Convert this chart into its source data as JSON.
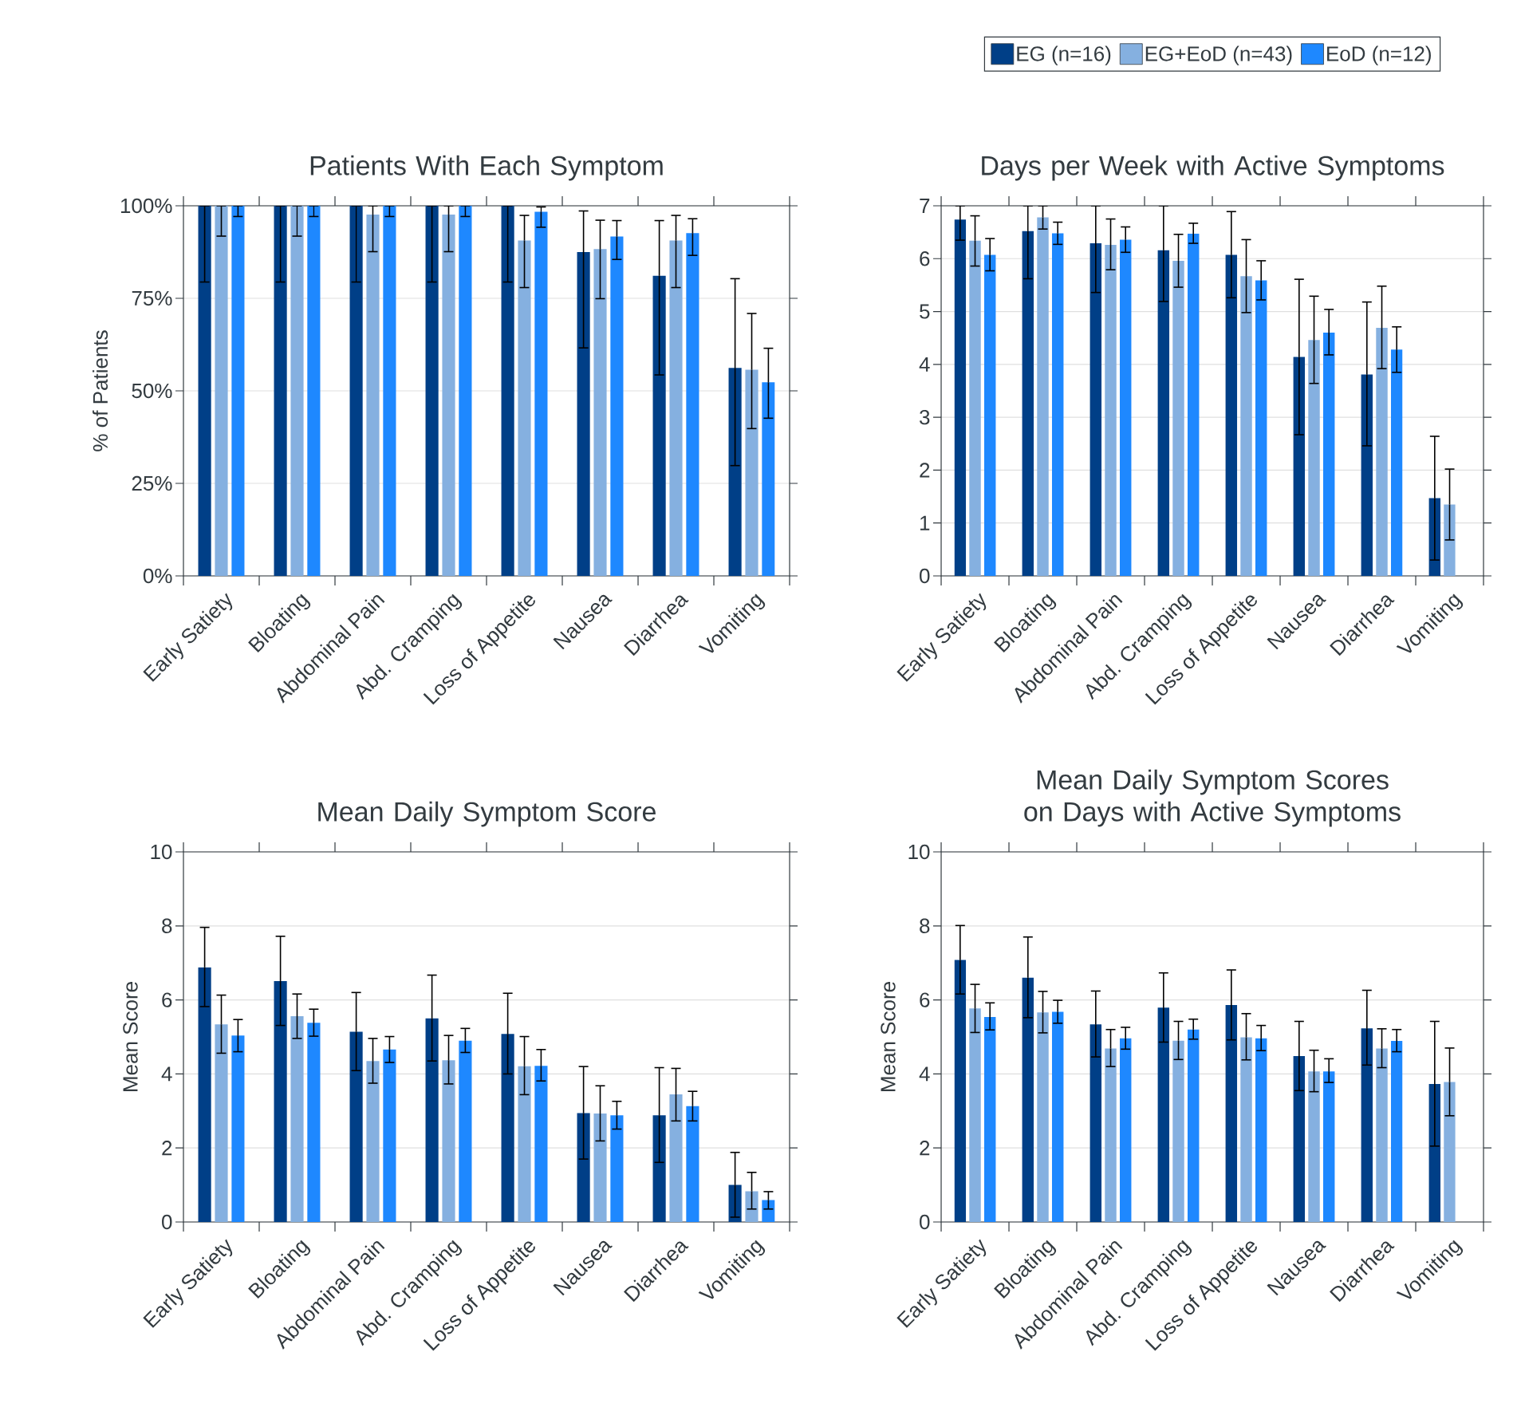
{
  "chart_data": [
    {
      "type": "bar",
      "title": "Patients With Each Symptom",
      "ylabel": "% of Patients",
      "categories": [
        "Early Satiety",
        "Bloating",
        "Abdominal Pain",
        "Abd. Cramping",
        "Loss of Appetite",
        "Nausea",
        "Diarrhea",
        "Vomiting"
      ],
      "ylim": [
        0,
        100
      ],
      "yticks": [
        {
          "value": 0,
          "label": "0%"
        },
        {
          "value": 25,
          "label": "25%"
        },
        {
          "value": 50,
          "label": "50%"
        },
        {
          "value": 75,
          "label": "75%"
        },
        {
          "value": 100,
          "label": "100%"
        }
      ],
      "grid": "y",
      "series": [
        {
          "color": "#003f87",
          "values": [
            100,
            100,
            100,
            100,
            100,
            87.5,
            81.1,
            56.2
          ],
          "errors": [
            [
              79.4,
              100
            ],
            [
              79.4,
              100
            ],
            [
              79.4,
              100
            ],
            [
              79.4,
              100
            ],
            [
              79.4,
              100
            ],
            [
              61.6,
              98.6
            ],
            [
              54.3,
              96.0
            ],
            [
              29.8,
              80.3
            ]
          ]
        },
        {
          "color": "#85b0e0",
          "values": [
            100,
            100,
            97.6,
            97.6,
            90.6,
            88.3,
            90.6,
            55.7
          ],
          "errors": [
            [
              91.8,
              100
            ],
            [
              91.8,
              100
            ],
            [
              87.6,
              100
            ],
            [
              87.6,
              100
            ],
            [
              77.9,
              97.4
            ],
            [
              74.9,
              96.1
            ],
            [
              77.9,
              97.4
            ],
            [
              39.8,
              70.9
            ]
          ]
        },
        {
          "color": "#1e88ff",
          "values": [
            100,
            100,
            100,
            100,
            98.4,
            91.7,
            92.6,
            52.3
          ],
          "errors": [
            [
              97.1,
              100
            ],
            [
              97.1,
              100
            ],
            [
              97.1,
              100
            ],
            [
              97.1,
              100
            ],
            [
              94.2,
              99.7
            ],
            [
              85.5,
              96.0
            ],
            [
              86.6,
              96.5
            ],
            [
              42.6,
              61.5
            ]
          ]
        }
      ]
    },
    {
      "type": "bar",
      "title": "Days per Week with Active Symptoms",
      "categories": [
        "Early Satiety",
        "Bloating",
        "Abdominal Pain",
        "Abd. Cramping",
        "Loss of Appetite",
        "Nausea",
        "Diarrhea",
        "Vomiting"
      ],
      "ylim": [
        0,
        7
      ],
      "yticks": [
        0,
        1,
        2,
        3,
        4,
        5,
        6,
        7
      ],
      "grid": "y",
      "legend": "top",
      "series": [
        {
          "name": "EG (n=16)",
          "color": "#003f87",
          "values": [
            6.74,
            6.52,
            6.29,
            6.16,
            6.07,
            4.14,
            3.81,
            1.47
          ],
          "errors": [
            [
              6.35,
              7
            ],
            [
              5.62,
              7
            ],
            [
              5.36,
              7
            ],
            [
              5.19,
              7
            ],
            [
              5.26,
              6.89
            ],
            [
              2.67,
              5.61
            ],
            [
              2.46,
              5.18
            ],
            [
              0.3,
              2.64
            ]
          ]
        },
        {
          "name": "EG+EoD (n=43)",
          "color": "#85b0e0",
          "values": [
            6.34,
            6.78,
            6.26,
            5.96,
            5.67,
            4.46,
            4.69,
            1.35
          ],
          "errors": [
            [
              5.86,
              6.81
            ],
            [
              6.56,
              7.0
            ],
            [
              5.79,
              6.75
            ],
            [
              5.46,
              6.46
            ],
            [
              4.98,
              6.36
            ],
            [
              3.64,
              5.29
            ],
            [
              3.92,
              5.48
            ],
            [
              0.68,
              2.02
            ]
          ]
        },
        {
          "name": "EoD (n=12)",
          "color": "#1e88ff",
          "values": [
            6.07,
            6.48,
            6.36,
            6.47,
            5.59,
            4.6,
            4.28,
            null
          ],
          "errors": [
            [
              5.77,
              6.38
            ],
            [
              6.27,
              6.69
            ],
            [
              6.12,
              6.6
            ],
            [
              6.29,
              6.67
            ],
            [
              5.22,
              5.96
            ],
            [
              4.18,
              5.04
            ],
            [
              3.85,
              4.71
            ],
            null
          ]
        }
      ]
    },
    {
      "type": "bar",
      "title": "Mean Daily Symptom Score",
      "ylabel": "Mean Score",
      "categories": [
        "Early Satiety",
        "Bloating",
        "Abdominal Pain",
        "Abd. Cramping",
        "Loss of Appetite",
        "Nausea",
        "Diarrhea",
        "Vomiting"
      ],
      "ylim": [
        0,
        10
      ],
      "yticks": [
        0,
        2,
        4,
        6,
        8,
        10
      ],
      "grid": "y",
      "series": [
        {
          "color": "#003f87",
          "values": [
            6.88,
            6.51,
            5.14,
            5.5,
            5.08,
            2.94,
            2.88,
            1.0
          ],
          "errors": [
            [
              5.82,
              7.96
            ],
            [
              5.31,
              7.72
            ],
            [
              4.09,
              6.2
            ],
            [
              4.35,
              6.67
            ],
            [
              4.0,
              6.18
            ],
            [
              1.7,
              4.2
            ],
            [
              1.61,
              4.17
            ],
            [
              0.13,
              1.88
            ]
          ]
        },
        {
          "color": "#85b0e0",
          "values": [
            5.34,
            5.56,
            4.35,
            4.37,
            4.21,
            2.93,
            3.45,
            0.83
          ],
          "errors": [
            [
              4.56,
              6.13
            ],
            [
              4.96,
              6.16
            ],
            [
              3.75,
              4.96
            ],
            [
              3.73,
              5.04
            ],
            [
              3.44,
              5.01
            ],
            [
              2.19,
              3.68
            ],
            [
              2.73,
              4.15
            ],
            [
              0.35,
              1.34
            ]
          ]
        },
        {
          "color": "#1e88ff",
          "values": [
            5.04,
            5.38,
            4.66,
            4.9,
            4.22,
            2.88,
            3.13,
            0.59
          ],
          "errors": [
            [
              4.6,
              5.47
            ],
            [
              5.02,
              5.75
            ],
            [
              4.31,
              5.01
            ],
            [
              4.58,
              5.23
            ],
            [
              3.81,
              4.66
            ],
            [
              2.51,
              3.26
            ],
            [
              2.73,
              3.53
            ],
            [
              0.35,
              0.82
            ]
          ]
        }
      ]
    },
    {
      "type": "bar",
      "title": "Mean Daily Symptom Scores on Days with Active Symptoms",
      "ylabel": "Mean Score",
      "categories": [
        "Early Satiety",
        "Bloating",
        "Abdominal Pain",
        "Abd. Cramping",
        "Loss of Appetite",
        "Nausea",
        "Diarrhea",
        "Vomiting"
      ],
      "ylim": [
        0,
        10
      ],
      "yticks": [
        0,
        2,
        4,
        6,
        8,
        10
      ],
      "grid": "y",
      "series": [
        {
          "color": "#003f87",
          "values": [
            7.08,
            6.6,
            5.34,
            5.79,
            5.86,
            4.48,
            5.23,
            3.73
          ],
          "errors": [
            [
              6.16,
              8.01
            ],
            [
              5.52,
              7.7
            ],
            [
              4.46,
              6.24
            ],
            [
              4.86,
              6.73
            ],
            [
              4.92,
              6.81
            ],
            [
              3.55,
              5.42
            ],
            [
              4.24,
              6.26
            ],
            [
              2.05,
              5.42
            ]
          ]
        },
        {
          "color": "#85b0e0",
          "values": [
            5.77,
            5.66,
            4.69,
            4.9,
            4.99,
            4.07,
            4.69,
            3.78
          ],
          "errors": [
            [
              5.12,
              6.42
            ],
            [
              5.11,
              6.23
            ],
            [
              4.2,
              5.2
            ],
            [
              4.39,
              5.42
            ],
            [
              4.38,
              5.63
            ],
            [
              3.52,
              4.64
            ],
            [
              4.17,
              5.22
            ],
            [
              2.87,
              4.7
            ]
          ]
        },
        {
          "color": "#1e88ff",
          "values": [
            5.54,
            5.68,
            4.96,
            5.2,
            4.96,
            4.07,
            4.89,
            null
          ],
          "errors": [
            [
              5.19,
              5.92
            ],
            [
              5.37,
              5.99
            ],
            [
              4.67,
              5.26
            ],
            [
              4.94,
              5.48
            ],
            [
              4.63,
              5.31
            ],
            [
              3.77,
              4.41
            ],
            [
              4.6,
              5.2
            ],
            null
          ]
        }
      ]
    }
  ]
}
